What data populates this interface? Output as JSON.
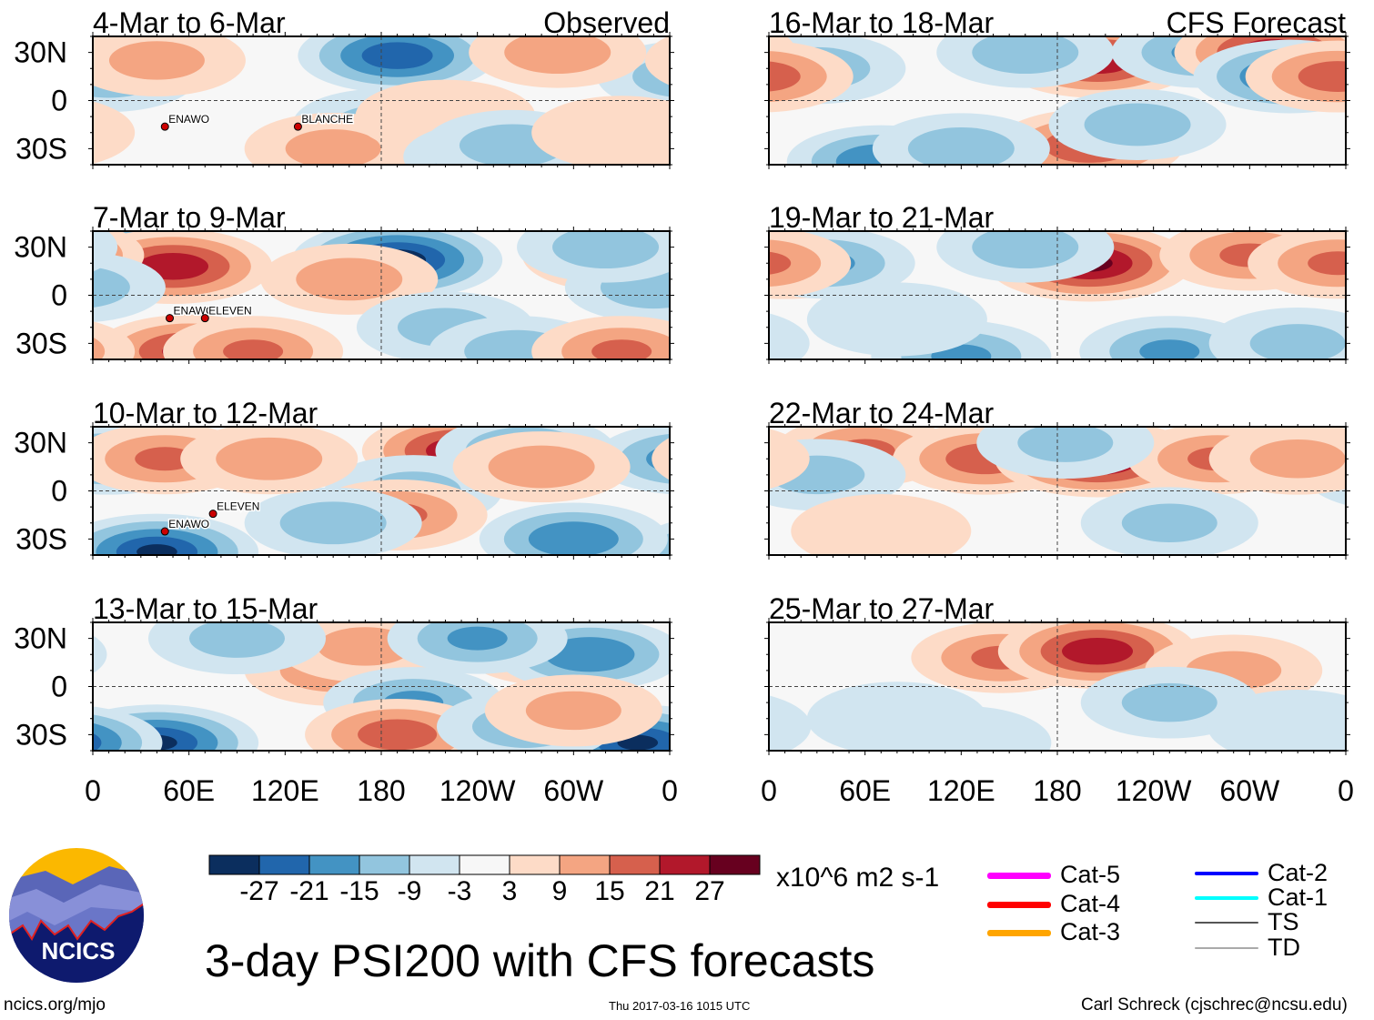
{
  "chart_data": {
    "type": "heatmap",
    "title": "3-day PSI200 with CFS forecasts",
    "units": "x10^6 m2 s-1",
    "xlim": [
      0,
      360
    ],
    "ylim": [
      -40,
      40
    ],
    "x_ticks": [
      "0",
      "60E",
      "120E",
      "180",
      "120W",
      "60W",
      "0"
    ],
    "x_tick_values": [
      0,
      60,
      120,
      180,
      240,
      300,
      360
    ],
    "y_ticks": [
      "30N",
      "0",
      "30S"
    ],
    "y_tick_values": [
      30,
      0,
      -30
    ],
    "colorbar": {
      "levels": [
        "-27",
        "-21",
        "-15",
        "-9",
        "-3",
        "3",
        "9",
        "15",
        "21",
        "27"
      ],
      "colors": [
        "#0b2e5e",
        "#2166ac",
        "#4393c3",
        "#92c5de",
        "#d1e5f0",
        "#f7f7f7",
        "#fddbc7",
        "#f4a582",
        "#d6604d",
        "#b2182b",
        "#67001f"
      ]
    },
    "column_labels": {
      "left": "Observed",
      "right": "CFS Forecast"
    },
    "panels": [
      {
        "title": "4-Mar to 6-Mar",
        "column": "left",
        "row": 0,
        "storms": [
          {
            "name": "ENAWO",
            "lon": 45,
            "lat": -14
          },
          {
            "name": "BLANCHE",
            "lon": 128,
            "lat": -14
          }
        ],
        "features": [
          [
            190,
            28,
            -25
          ],
          [
            10,
            15,
            -12
          ],
          [
            290,
            30,
            12
          ],
          [
            180,
            -15,
            -10
          ],
          [
            150,
            -30,
            10
          ],
          [
            220,
            -10,
            8
          ],
          [
            250,
            -35,
            -15
          ],
          [
            262,
            -28,
            -12
          ],
          [
            40,
            25,
            10
          ],
          [
            330,
            -20,
            8
          ]
        ]
      },
      {
        "title": "7-Mar to 9-Mar",
        "column": "left",
        "row": 1,
        "storms": [
          {
            "name": "ENAWO",
            "lon": 48,
            "lat": -12
          },
          {
            "name": "ELEVEN",
            "lon": 70,
            "lat": -12
          }
        ],
        "features": [
          [
            30,
            25,
            -20
          ],
          [
            50,
            18,
            25
          ],
          [
            190,
            22,
            -30
          ],
          [
            330,
            25,
            25
          ],
          [
            160,
            10,
            12
          ],
          [
            60,
            -35,
            22
          ],
          [
            100,
            -35,
            15
          ],
          [
            350,
            5,
            -12
          ],
          [
            320,
            30,
            -12
          ],
          [
            220,
            -20,
            -10
          ],
          [
            265,
            -35,
            -12
          ],
          [
            330,
            -35,
            15
          ]
        ]
      },
      {
        "title": "10-Mar to 12-Mar",
        "column": "left",
        "row": 2,
        "storms": [
          {
            "name": "ELEVEN",
            "lon": 75,
            "lat": -12
          },
          {
            "name": "ENAWO",
            "lon": 45,
            "lat": -23
          }
        ],
        "features": [
          [
            10,
            20,
            -18
          ],
          [
            45,
            20,
            15
          ],
          [
            230,
            25,
            25
          ],
          [
            200,
            0,
            -10
          ],
          [
            40,
            -38,
            -27
          ],
          [
            300,
            -30,
            -20
          ],
          [
            190,
            -15,
            15
          ],
          [
            150,
            -20,
            -12
          ],
          [
            270,
            25,
            -15
          ],
          [
            280,
            15,
            12
          ],
          [
            110,
            20,
            12
          ]
        ]
      },
      {
        "title": "13-Mar to 15-Mar",
        "column": "left",
        "row": 3,
        "storms": [],
        "features": [
          [
            150,
            10,
            12
          ],
          [
            170,
            25,
            10
          ],
          [
            290,
            23,
            22
          ],
          [
            310,
            20,
            -20
          ],
          [
            200,
            -10,
            -15
          ],
          [
            40,
            -35,
            -27
          ],
          [
            340,
            -35,
            -27
          ],
          [
            190,
            -30,
            18
          ],
          [
            270,
            -25,
            -12
          ],
          [
            240,
            30,
            -15
          ],
          [
            90,
            30,
            -10
          ],
          [
            300,
            -15,
            10
          ]
        ]
      },
      {
        "title": "16-Mar to 18-Mar",
        "column": "right",
        "row": 0,
        "storms": [],
        "features": [
          [
            30,
            20,
            -12
          ],
          [
            205,
            25,
            25
          ],
          [
            270,
            30,
            -15
          ],
          [
            315,
            30,
            25
          ],
          [
            325,
            15,
            -22
          ],
          [
            355,
            15,
            18
          ],
          [
            200,
            -28,
            20
          ],
          [
            230,
            -15,
            -12
          ],
          [
            70,
            -38,
            -20
          ],
          [
            120,
            -30,
            -12
          ],
          [
            160,
            30,
            -12
          ]
        ]
      },
      {
        "title": "19-Mar to 21-Mar",
        "column": "right",
        "row": 1,
        "storms": [],
        "features": [
          [
            10,
            20,
            18
          ],
          [
            35,
            20,
            -15
          ],
          [
            200,
            20,
            28
          ],
          [
            300,
            25,
            15
          ],
          [
            120,
            -38,
            -15
          ],
          [
            250,
            -35,
            -15
          ],
          [
            80,
            -15,
            -8
          ],
          [
            355,
            20,
            15
          ],
          [
            160,
            30,
            -12
          ],
          [
            330,
            -30,
            -10
          ]
        ]
      },
      {
        "title": "22-Mar to 24-Mar",
        "column": "right",
        "row": 2,
        "storms": [],
        "features": [
          [
            60,
            25,
            15
          ],
          [
            135,
            20,
            18
          ],
          [
            205,
            20,
            28
          ],
          [
            280,
            20,
            15
          ],
          [
            185,
            30,
            -10
          ],
          [
            30,
            10,
            -10
          ],
          [
            70,
            -25,
            8
          ],
          [
            250,
            -20,
            -10
          ],
          [
            330,
            20,
            10
          ]
        ]
      },
      {
        "title": "25-Mar to 27-Mar",
        "column": "right",
        "row": 3,
        "storms": [],
        "features": [
          [
            145,
            18,
            15
          ],
          [
            205,
            22,
            25
          ],
          [
            290,
            10,
            10
          ],
          [
            250,
            -10,
            -10
          ],
          [
            80,
            -20,
            -8
          ],
          [
            120,
            -35,
            -8
          ],
          [
            330,
            -25,
            -8
          ]
        ]
      }
    ]
  },
  "legend": {
    "tracks": [
      {
        "label": "Cat-5",
        "color": "#ff00ff"
      },
      {
        "label": "Cat-4",
        "color": "#ff0000"
      },
      {
        "label": "Cat-3",
        "color": "#ffa500"
      },
      {
        "label": "Cat-2",
        "color": "#0000ff"
      },
      {
        "label": "Cat-1",
        "color": "#00ffff"
      },
      {
        "label": "TS",
        "color": "#555555"
      },
      {
        "label": "TD",
        "color": "#aaaaaa"
      }
    ]
  },
  "logo": {
    "text": "NCICS"
  },
  "footer": {
    "url": "ncics.org/mjo",
    "timestamp": "Thu 2017-03-16 1015 UTC",
    "author": "Carl Schreck (cjschrec@ncsu.edu)"
  }
}
